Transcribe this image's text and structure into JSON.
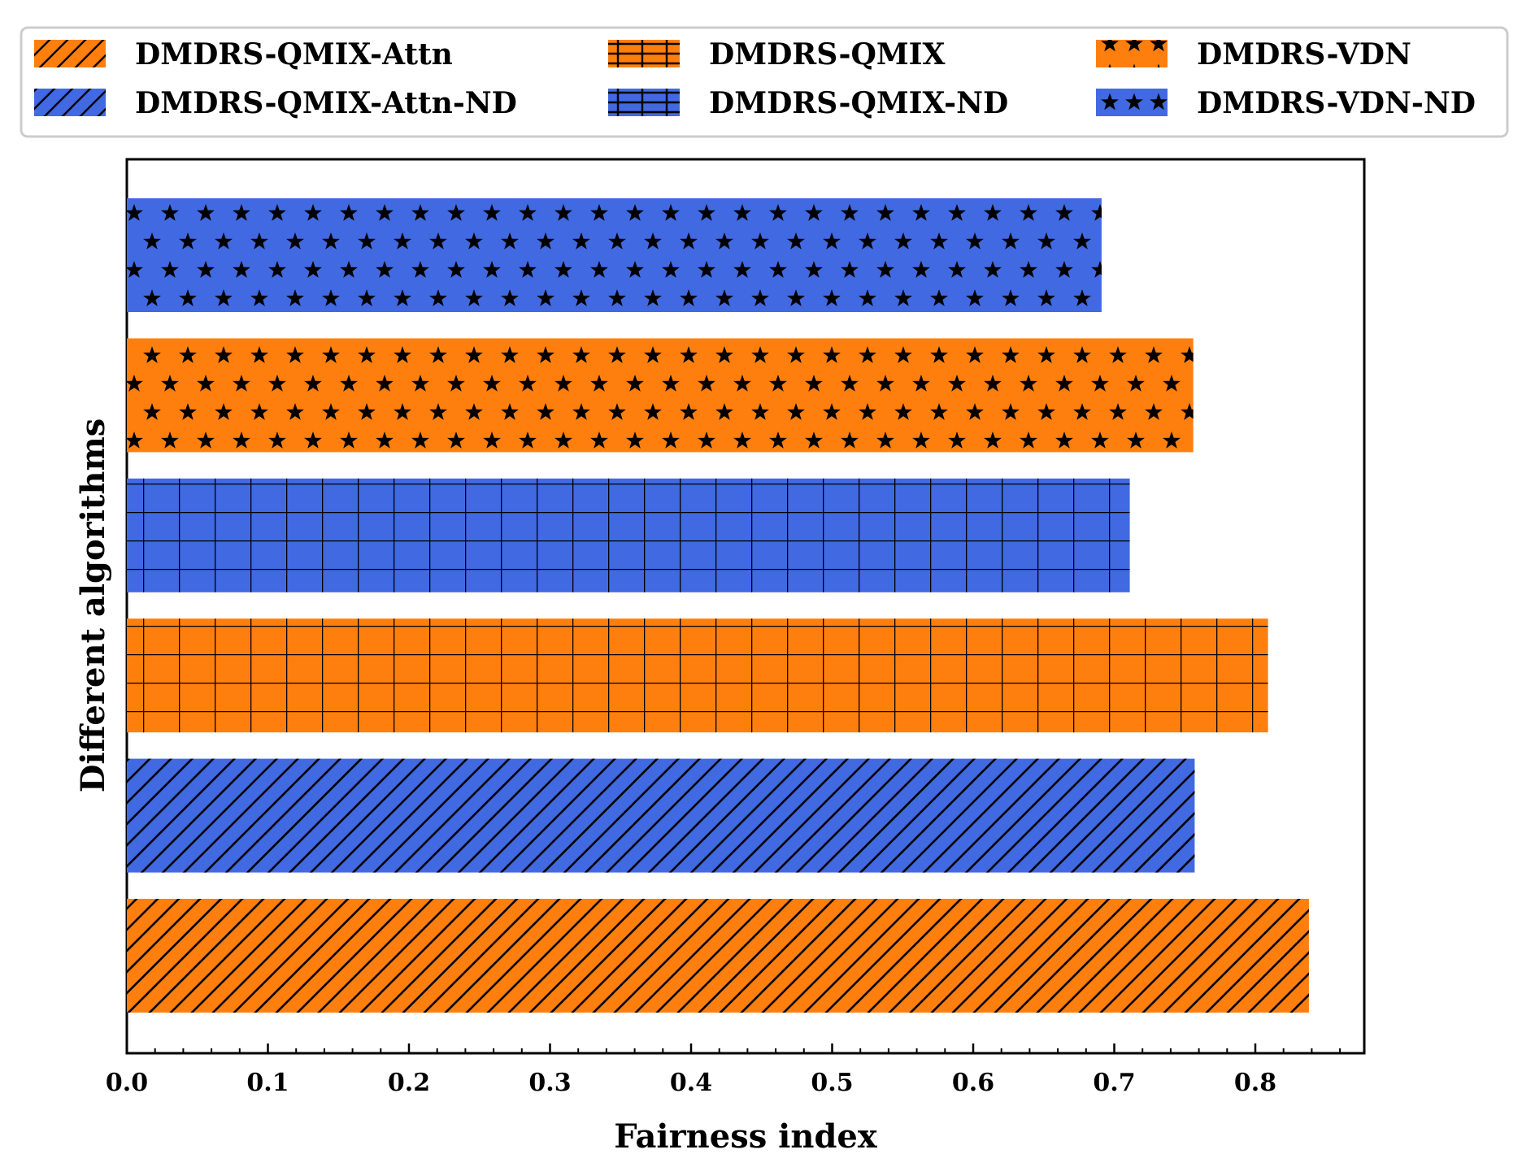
{
  "chart_data": {
    "type": "bar",
    "orientation": "horizontal",
    "title": "",
    "xlabel": "Fairness index",
    "ylabel": "Different algorithms",
    "xlim": [
      0.0,
      0.88
    ],
    "xticks": [
      "0.0",
      "0.1",
      "0.2",
      "0.3",
      "0.4",
      "0.5",
      "0.6",
      "0.7",
      "0.8"
    ],
    "grid": false,
    "legend_position": "top",
    "series": [
      {
        "name": "DMDRS-QMIX-Attn",
        "value": 0.838,
        "color": "#ff7f0e",
        "hatch": "diagonal"
      },
      {
        "name": "DMDRS-QMIX-Attn-ND",
        "value": 0.757,
        "color": "#4169e1",
        "hatch": "diagonal"
      },
      {
        "name": "DMDRS-QMIX",
        "value": 0.809,
        "color": "#ff7f0e",
        "hatch": "grid"
      },
      {
        "name": "DMDRS-QMIX-ND",
        "value": 0.711,
        "color": "#4169e1",
        "hatch": "grid"
      },
      {
        "name": "DMDRS-VDN",
        "value": 0.756,
        "color": "#ff7f0e",
        "hatch": "stars"
      },
      {
        "name": "DMDRS-VDN-ND",
        "value": 0.691,
        "color": "#4169e1",
        "hatch": "stars"
      }
    ]
  }
}
